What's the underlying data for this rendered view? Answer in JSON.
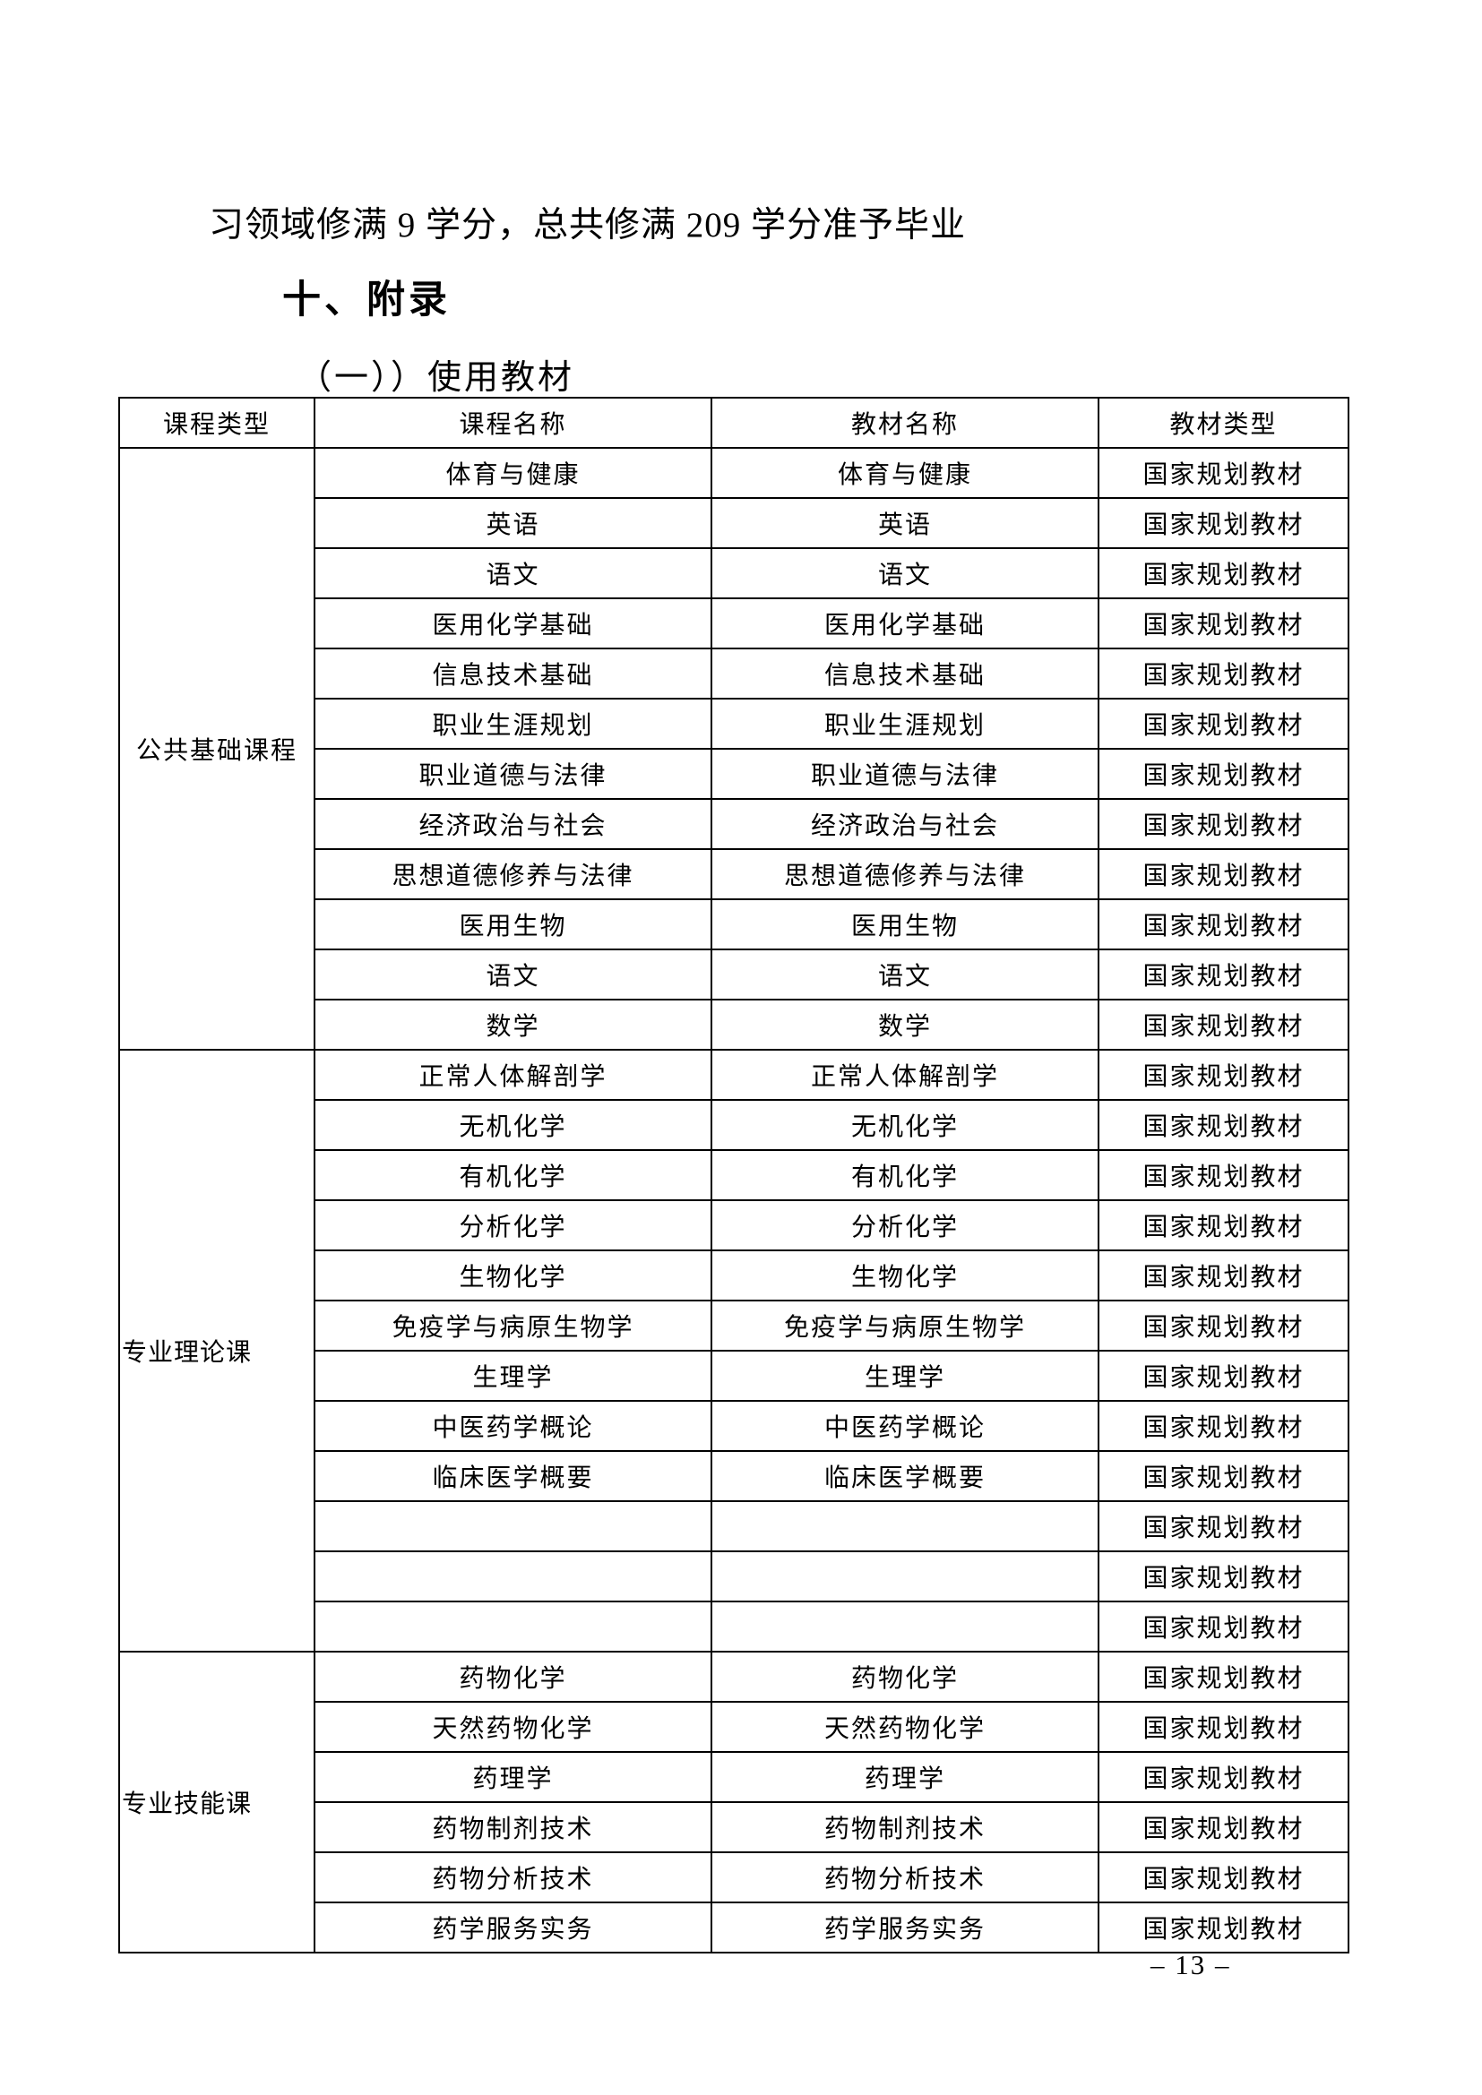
{
  "page": {
    "intro_line": "习领域修满 9 学分，总共修满 209 学分准予毕业",
    "section_heading": "十、附录",
    "subsection_heading": "（一））使用教材",
    "page_number": "– 13 –"
  },
  "table": {
    "headers": [
      "课程类型",
      "课程名称",
      "教材名称",
      "教材类型"
    ],
    "groups": [
      {
        "type": "公共基础课程",
        "align": "center",
        "rows": [
          {
            "course": "体育与健康",
            "textbook": "体育与健康",
            "kind": "国家规划教材"
          },
          {
            "course": "英语",
            "textbook": "英语",
            "kind": "国家规划教材"
          },
          {
            "course": "语文",
            "textbook": "语文",
            "kind": "国家规划教材"
          },
          {
            "course": "医用化学基础",
            "textbook": "医用化学基础",
            "kind": "国家规划教材"
          },
          {
            "course": "信息技术基础",
            "textbook": "信息技术基础",
            "kind": "国家规划教材"
          },
          {
            "course": "职业生涯规划",
            "textbook": "职业生涯规划",
            "kind": "国家规划教材"
          },
          {
            "course": "职业道德与法律",
            "textbook": "职业道德与法律",
            "kind": "国家规划教材"
          },
          {
            "course": "经济政治与社会",
            "textbook": "经济政治与社会",
            "kind": "国家规划教材"
          },
          {
            "course": "思想道德修养与法律",
            "textbook": "思想道德修养与法律",
            "kind": "国家规划教材"
          },
          {
            "course": "医用生物",
            "textbook": "医用生物",
            "kind": "国家规划教材"
          },
          {
            "course": "语文",
            "textbook": "语文",
            "kind": "国家规划教材"
          },
          {
            "course": "数学",
            "textbook": "数学",
            "kind": "国家规划教材"
          }
        ]
      },
      {
        "type": "专业理论课",
        "align": "left",
        "rows": [
          {
            "course": "正常人体解剖学",
            "textbook": "正常人体解剖学",
            "kind": "国家规划教材"
          },
          {
            "course": "无机化学",
            "textbook": "无机化学",
            "kind": "国家规划教材"
          },
          {
            "course": "有机化学",
            "textbook": "有机化学",
            "kind": "国家规划教材"
          },
          {
            "course": "分析化学",
            "textbook": "分析化学",
            "kind": "国家规划教材"
          },
          {
            "course": "生物化学",
            "textbook": "生物化学",
            "kind": "国家规划教材"
          },
          {
            "course": "免疫学与病原生物学",
            "textbook": "免疫学与病原生物学",
            "kind": "国家规划教材"
          },
          {
            "course": "生理学",
            "textbook": "生理学",
            "kind": "国家规划教材"
          },
          {
            "course": "中医药学概论",
            "textbook": "中医药学概论",
            "kind": "国家规划教材"
          },
          {
            "course": "临床医学概要",
            "textbook": "临床医学概要",
            "kind": "国家规划教材"
          },
          {
            "course": "",
            "textbook": "",
            "kind": "国家规划教材"
          },
          {
            "course": "",
            "textbook": "",
            "kind": "国家规划教材"
          },
          {
            "course": "",
            "textbook": "",
            "kind": "国家规划教材"
          }
        ]
      },
      {
        "type": "专业技能课",
        "align": "left",
        "rows": [
          {
            "course": "药物化学",
            "textbook": "药物化学",
            "kind": "国家规划教材"
          },
          {
            "course": "天然药物化学",
            "textbook": "天然药物化学",
            "kind": "国家规划教材"
          },
          {
            "course": "药理学",
            "textbook": "药理学",
            "kind": "国家规划教材"
          },
          {
            "course": "药物制剂技术",
            "textbook": "药物制剂技术",
            "kind": "国家规划教材"
          },
          {
            "course": "药物分析技术",
            "textbook": "药物分析技术",
            "kind": "国家规划教材"
          },
          {
            "course": "药学服务实务",
            "textbook": "药学服务实务",
            "kind": "国家规划教材"
          }
        ]
      }
    ]
  }
}
